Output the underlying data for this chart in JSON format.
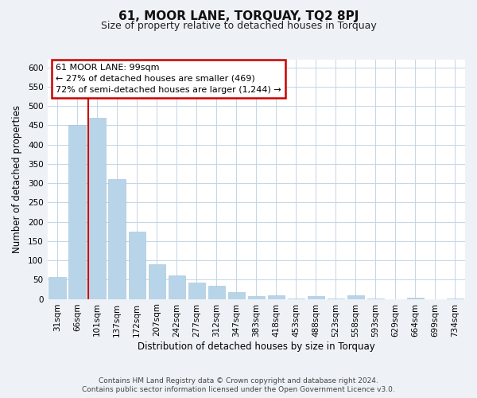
{
  "title": "61, MOOR LANE, TORQUAY, TQ2 8PJ",
  "subtitle": "Size of property relative to detached houses in Torquay",
  "xlabel": "Distribution of detached houses by size in Torquay",
  "ylabel": "Number of detached properties",
  "categories": [
    "31sqm",
    "66sqm",
    "101sqm",
    "137sqm",
    "172sqm",
    "207sqm",
    "242sqm",
    "277sqm",
    "312sqm",
    "347sqm",
    "383sqm",
    "418sqm",
    "453sqm",
    "488sqm",
    "523sqm",
    "558sqm",
    "593sqm",
    "629sqm",
    "664sqm",
    "699sqm",
    "734sqm"
  ],
  "values": [
    57,
    450,
    470,
    310,
    175,
    90,
    60,
    42,
    35,
    18,
    8,
    10,
    1,
    8,
    1,
    10,
    1,
    0,
    3,
    0,
    2
  ],
  "bar_color": "#b8d4e8",
  "highlight_line_color": "#cc0000",
  "highlight_line_index": 2,
  "ylim": [
    0,
    620
  ],
  "yticks": [
    0,
    50,
    100,
    150,
    200,
    250,
    300,
    350,
    400,
    450,
    500,
    550,
    600
  ],
  "annotation_line1": "61 MOOR LANE: 99sqm",
  "annotation_line2": "← 27% of detached houses are smaller (469)",
  "annotation_line3": "72% of semi-detached houses are larger (1,244) →",
  "footer1": "Contains HM Land Registry data © Crown copyright and database right 2024.",
  "footer2": "Contains public sector information licensed under the Open Government Licence v3.0.",
  "bg_color": "#eef2f7",
  "plot_bg_color": "#ffffff",
  "grid_color": "#c5d5e5",
  "title_fontsize": 11,
  "subtitle_fontsize": 9,
  "axis_label_fontsize": 8.5,
  "tick_fontsize": 7.5,
  "footer_fontsize": 6.5
}
